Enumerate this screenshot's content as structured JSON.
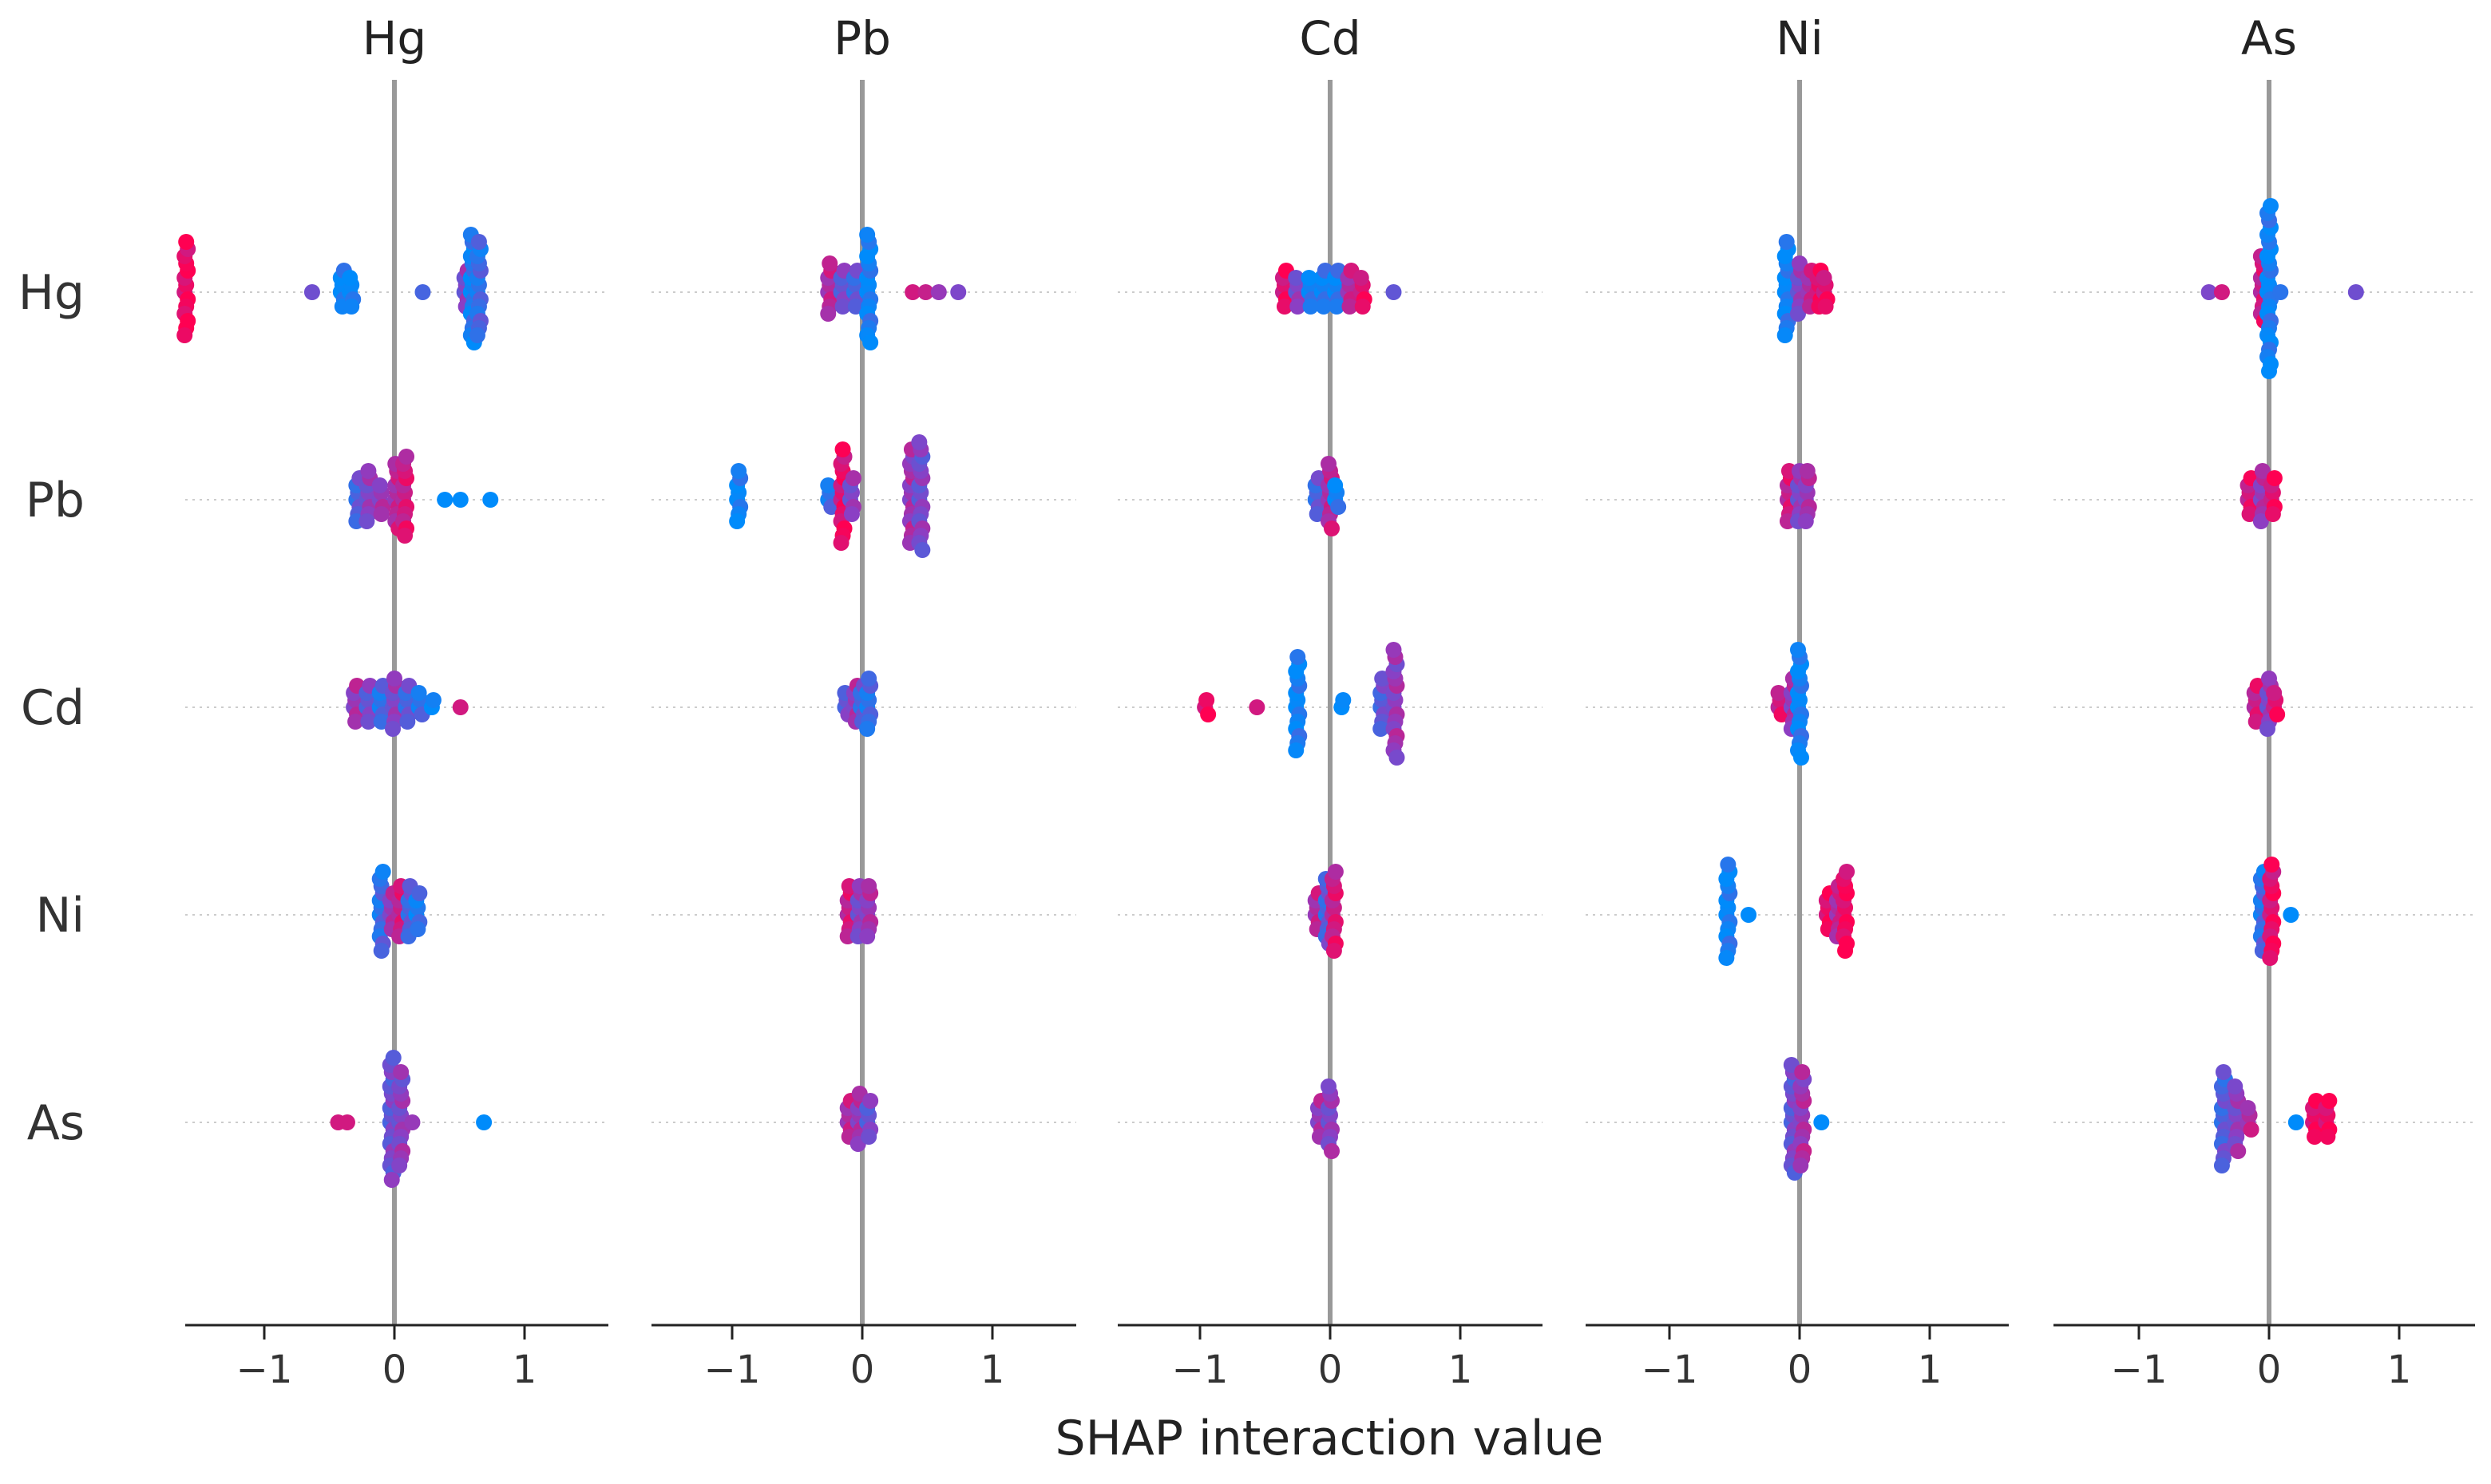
{
  "chart_data": {
    "type": "scatter",
    "subtype": "shap-interaction-beeswarm",
    "xlabel": "SHAP interaction value",
    "xlim": [
      -1.6,
      1.6
    ],
    "xticks": [
      -1,
      0,
      1
    ],
    "xtick_labels": [
      "−1",
      "0",
      "1"
    ],
    "features": [
      "Hg",
      "Pb",
      "Cd",
      "Ni",
      "As"
    ],
    "color_low": "#008bfb",
    "color_high": "#ff0052",
    "color_mid": "#8b3fc4",
    "zero_line_color": "#999999",
    "grid": "dotted horizontal lines per feature row",
    "note": "Each cluster lists [x_value, feature_value(0=low,1=high), count]; points are stacked vertically (beeswarm).",
    "panels": [
      {
        "title": "Hg",
        "rows": [
          {
            "feature": "Hg",
            "clusters": [
              [
                -1.6,
                0.95,
                14
              ],
              [
                -0.62,
                0.55,
                1
              ],
              [
                -0.4,
                0.05,
                6
              ],
              [
                -0.33,
                0.05,
                5
              ],
              [
                0.23,
                0.4,
                1
              ],
              [
                0.55,
                0.5,
                6
              ],
              [
                0.6,
                0.1,
                16
              ],
              [
                0.65,
                0.2,
                14
              ]
            ]
          },
          {
            "feature": "Pb",
            "clusters": [
              [
                -0.28,
                0.3,
                7
              ],
              [
                -0.2,
                0.5,
                8
              ],
              [
                -0.1,
                0.6,
                5
              ],
              [
                0.02,
                0.7,
                10
              ],
              [
                0.08,
                0.8,
                12
              ],
              [
                0.4,
                0.05,
                1
              ],
              [
                0.52,
                0.05,
                1
              ],
              [
                0.75,
                0.05,
                1
              ]
            ]
          },
          {
            "feature": "Cd",
            "clusters": [
              [
                -0.3,
                0.6,
                6
              ],
              [
                -0.2,
                0.4,
                6
              ],
              [
                -0.1,
                0.2,
                6
              ],
              [
                0.0,
                0.5,
                8
              ],
              [
                0.1,
                0.3,
                6
              ],
              [
                0.2,
                0.2,
                4
              ],
              [
                0.3,
                0.1,
                2
              ],
              [
                0.52,
                0.95,
                1
              ]
            ]
          },
          {
            "feature": "Ni",
            "clusters": [
              [
                -0.1,
                0.2,
                12
              ],
              [
                -0.02,
                0.6,
                6
              ],
              [
                0.05,
                0.8,
                8
              ],
              [
                0.12,
                0.3,
                8
              ],
              [
                0.18,
                0.15,
                6
              ]
            ]
          },
          {
            "feature": "As",
            "clusters": [
              [
                -0.42,
                0.95,
                1
              ],
              [
                -0.35,
                0.95,
                1
              ],
              [
                -0.02,
                0.4,
                18
              ],
              [
                0.05,
                0.5,
                14
              ],
              [
                0.15,
                0.7,
                1
              ],
              [
                0.7,
                0.05,
                1
              ]
            ]
          }
        ]
      },
      {
        "title": "Pb",
        "rows": [
          {
            "feature": "Hg",
            "clusters": [
              [
                -0.25,
                0.7,
                8
              ],
              [
                -0.15,
                0.4,
                6
              ],
              [
                -0.05,
                0.3,
                6
              ],
              [
                0.05,
                0.05,
                16
              ],
              [
                0.4,
                0.95,
                1
              ],
              [
                0.5,
                0.9,
                1
              ],
              [
                0.6,
                0.7,
                1
              ],
              [
                0.75,
                0.6,
                1
              ]
            ]
          },
          {
            "feature": "Pb",
            "clusters": [
              [
                -0.95,
                0.05,
                8
              ],
              [
                -0.25,
                0.2,
                4
              ],
              [
                -0.15,
                0.9,
                14
              ],
              [
                -0.08,
                0.5,
                6
              ],
              [
                0.38,
                0.6,
                14
              ],
              [
                0.45,
                0.45,
                16
              ]
            ]
          },
          {
            "feature": "Cd",
            "clusters": [
              [
                -0.12,
                0.4,
                4
              ],
              [
                -0.05,
                0.6,
                6
              ],
              [
                0.0,
                0.3,
                6
              ],
              [
                0.05,
                0.2,
                8
              ]
            ]
          },
          {
            "feature": "Ni",
            "clusters": [
              [
                -0.1,
                0.8,
                8
              ],
              [
                -0.02,
                0.5,
                8
              ],
              [
                0.05,
                0.6,
                8
              ]
            ]
          },
          {
            "feature": "As",
            "clusters": [
              [
                -0.1,
                0.7,
                6
              ],
              [
                -0.02,
                0.6,
                8
              ],
              [
                0.05,
                0.4,
                6
              ]
            ]
          }
        ]
      },
      {
        "title": "Cd",
        "rows": [
          {
            "feature": "Hg",
            "clusters": [
              [
                -0.35,
                0.9,
                6
              ],
              [
                -0.25,
                0.5,
                5
              ],
              [
                -0.15,
                0.1,
                5
              ],
              [
                -0.05,
                0.1,
                6
              ],
              [
                0.05,
                0.1,
                6
              ],
              [
                0.15,
                0.7,
                6
              ],
              [
                0.25,
                0.9,
                5
              ],
              [
                0.5,
                0.5,
                1
              ]
            ]
          },
          {
            "feature": "Pb",
            "clusters": [
              [
                -0.1,
                0.3,
                6
              ],
              [
                0.0,
                0.7,
                10
              ],
              [
                0.05,
                0.1,
                4
              ]
            ]
          },
          {
            "feature": "Cd",
            "clusters": [
              [
                -0.95,
                0.95,
                3
              ],
              [
                -0.55,
                0.95,
                1
              ],
              [
                -0.25,
                0.05,
                14
              ],
              [
                0.1,
                0.05,
                2
              ],
              [
                0.4,
                0.35,
                8
              ],
              [
                0.5,
                0.55,
                16
              ]
            ]
          },
          {
            "feature": "Ni",
            "clusters": [
              [
                -0.1,
                0.7,
                6
              ],
              [
                -0.02,
                0.3,
                10
              ],
              [
                0.03,
                0.8,
                12
              ]
            ]
          },
          {
            "feature": "As",
            "clusters": [
              [
                -0.08,
                0.6,
                6
              ],
              [
                0.0,
                0.5,
                10
              ]
            ]
          }
        ]
      },
      {
        "title": "Ni",
        "rows": [
          {
            "feature": "Hg",
            "clusters": [
              [
                -0.1,
                0.05,
                14
              ],
              [
                0.0,
                0.5,
                8
              ],
              [
                0.08,
                0.7,
                6
              ],
              [
                0.15,
                0.95,
                6
              ],
              [
                0.2,
                0.9,
                5
              ]
            ]
          },
          {
            "feature": "Pb",
            "clusters": [
              [
                -0.08,
                0.8,
                8
              ],
              [
                0.0,
                0.5,
                8
              ],
              [
                0.06,
                0.6,
                8
              ]
            ]
          },
          {
            "feature": "Cd",
            "clusters": [
              [
                -0.15,
                0.85,
                4
              ],
              [
                -0.05,
                0.6,
                8
              ],
              [
                0.0,
                0.05,
                16
              ]
            ]
          },
          {
            "feature": "Ni",
            "clusters": [
              [
                -0.55,
                0.05,
                14
              ],
              [
                -0.38,
                0.05,
                1
              ],
              [
                0.22,
                0.95,
                6
              ],
              [
                0.3,
                0.7,
                8
              ],
              [
                0.35,
                0.95,
                12
              ]
            ]
          },
          {
            "feature": "As",
            "clusters": [
              [
                -0.05,
                0.4,
                16
              ],
              [
                0.02,
                0.6,
                14
              ],
              [
                0.18,
                0.05,
                1
              ]
            ]
          }
        ]
      },
      {
        "title": "As",
        "rows": [
          {
            "feature": "Hg",
            "clusters": [
              [
                -0.45,
                0.6,
                1
              ],
              [
                -0.35,
                0.95,
                1
              ],
              [
                -0.05,
                0.8,
                10
              ],
              [
                0.0,
                0.05,
                24
              ],
              [
                0.1,
                0.3,
                1
              ],
              [
                0.68,
                0.55,
                1
              ]
            ]
          },
          {
            "feature": "Pb",
            "clusters": [
              [
                -0.15,
                0.85,
                6
              ],
              [
                -0.05,
                0.6,
                8
              ],
              [
                0.03,
                0.9,
                6
              ]
            ]
          },
          {
            "feature": "Cd",
            "clusters": [
              [
                -0.1,
                0.8,
                6
              ],
              [
                0.0,
                0.5,
                8
              ],
              [
                0.05,
                0.9,
                4
              ]
            ]
          },
          {
            "feature": "Ni",
            "clusters": [
              [
                -0.05,
                0.2,
                12
              ],
              [
                0.02,
                0.9,
                14
              ],
              [
                0.18,
                0.05,
                1
              ]
            ]
          },
          {
            "feature": "As",
            "clusters": [
              [
                -0.35,
                0.3,
                14
              ],
              [
                -0.25,
                0.5,
                10
              ],
              [
                -0.15,
                0.7,
                4
              ],
              [
                0.22,
                0.05,
                1
              ],
              [
                0.35,
                0.95,
                6
              ],
              [
                0.45,
                0.95,
                6
              ]
            ]
          }
        ]
      }
    ]
  }
}
